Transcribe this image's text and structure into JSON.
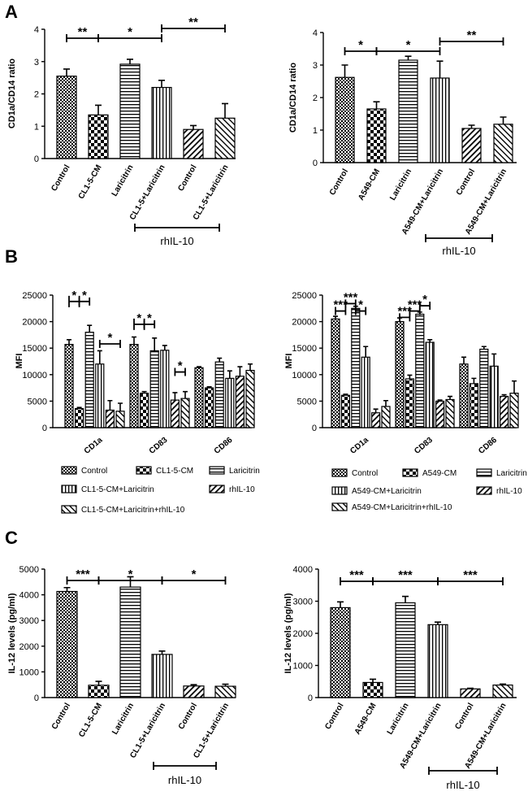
{
  "figure": {
    "panel_labels": [
      "A",
      "B",
      "C"
    ],
    "treatment_label": "rhIL-10",
    "legend_entries_left": [
      "Control",
      "CL1-5-CM",
      "Laricitrin",
      "CL1-5-CM+Laricitrin",
      "rhIL-10",
      "CL1-5-CM+Laricitrin+rhIL-10"
    ],
    "legend_entries_right": [
      "Control",
      "A549-CM",
      "Laricitrin",
      "A549-CM+Laricitrin",
      "rhIL-10",
      "A549-CM+Laricitrin+rhIL-10"
    ]
  },
  "colors": {
    "ink": "#000000",
    "background": "#ffffff"
  },
  "chart_data": [
    {
      "id": "A-left",
      "type": "bar",
      "panel": "A",
      "ylabel": "CD1a/CD14 ratio",
      "ylim": [
        0,
        4
      ],
      "yticks": [
        0,
        1,
        2,
        3,
        4
      ],
      "categories": [
        "Control",
        "CL1-5-CM",
        "Laricitrin",
        "CL1-5+Laricitrin",
        "Control",
        "CL1-5+Laricitrin"
      ],
      "values": [
        2.55,
        1.35,
        2.92,
        2.2,
        0.9,
        1.25
      ],
      "errors": [
        0.22,
        0.3,
        0.15,
        0.22,
        0.12,
        0.45
      ],
      "patterns": [
        "checker",
        "bigcheck",
        "hlines",
        "vlines",
        "diag",
        "diag2"
      ],
      "significance": [
        {
          "from": 0,
          "to": 1,
          "label": "**"
        },
        {
          "from": 1,
          "to": 3,
          "label": "*"
        },
        {
          "from": 3,
          "to": 5,
          "label": "**"
        }
      ],
      "treatment_group": [
        4,
        5
      ]
    },
    {
      "id": "A-right",
      "type": "bar",
      "panel": "A",
      "ylabel": "CD1a/CD14 ratio",
      "ylim": [
        0,
        4
      ],
      "yticks": [
        0,
        1,
        2,
        3,
        4
      ],
      "categories": [
        "Control",
        "A549-CM",
        "Laricitrin",
        "A549-CM+Laricitrin",
        "Control",
        "A549-CM+Laricitrin"
      ],
      "values": [
        2.62,
        1.65,
        3.15,
        2.6,
        1.05,
        1.18
      ],
      "errors": [
        0.38,
        0.22,
        0.12,
        0.52,
        0.1,
        0.22
      ],
      "patterns": [
        "checker",
        "bigcheck",
        "hlines",
        "vlines",
        "diag",
        "diag2"
      ],
      "significance": [
        {
          "from": 0,
          "to": 1,
          "label": "*"
        },
        {
          "from": 1,
          "to": 3,
          "label": "*"
        },
        {
          "from": 3,
          "to": 5,
          "label": "**"
        }
      ],
      "treatment_group": [
        4,
        5
      ]
    },
    {
      "id": "B-left",
      "type": "bar",
      "panel": "B",
      "ylabel": "MFI",
      "ylim": [
        0,
        25000
      ],
      "yticks": [
        0,
        5000,
        10000,
        15000,
        20000,
        25000
      ],
      "categories": [
        "CD1a",
        "CD83",
        "CD86"
      ],
      "series": [
        {
          "name": "Control",
          "pattern": "checker",
          "values": [
            15700,
            15700,
            11300
          ],
          "errors": [
            900,
            1400,
            200
          ]
        },
        {
          "name": "CL1-5-CM",
          "pattern": "bigcheck",
          "values": [
            3600,
            6500,
            7500
          ],
          "errors": [
            200,
            300,
            200
          ]
        },
        {
          "name": "Laricitrin",
          "pattern": "hlines",
          "values": [
            18000,
            14500,
            12400
          ],
          "errors": [
            1300,
            2400,
            700
          ]
        },
        {
          "name": "CL1-5-CM+Laricitrin",
          "pattern": "vlines",
          "values": [
            12000,
            14600,
            9300
          ],
          "errors": [
            2500,
            900,
            1400
          ]
        },
        {
          "name": "rhIL-10",
          "pattern": "diag",
          "values": [
            3300,
            5200,
            9700
          ],
          "errors": [
            1800,
            1400,
            1800
          ]
        },
        {
          "name": "CL1-5-CM+Laricitrin+rhIL-10",
          "pattern": "diag2",
          "values": [
            3100,
            5500,
            10800
          ],
          "errors": [
            1500,
            1300,
            1200
          ]
        }
      ],
      "significance": [
        {
          "group": 0,
          "from": 0,
          "to": 1,
          "label": "*",
          "level": 23800,
          "tall": true
        },
        {
          "group": 0,
          "from": 1,
          "to": 2,
          "label": "*",
          "level": 23800
        },
        {
          "group": 0,
          "from": 3,
          "to": 5,
          "label": "*",
          "level": 15800
        },
        {
          "group": 1,
          "from": 0,
          "to": 1,
          "label": "*",
          "level": 19500,
          "tall": true
        },
        {
          "group": 1,
          "from": 1,
          "to": 2,
          "label": "*",
          "level": 19500
        },
        {
          "group": 1,
          "from": 4,
          "to": 5,
          "label": "*",
          "level": 10500
        }
      ]
    },
    {
      "id": "B-right",
      "type": "bar",
      "panel": "B",
      "ylabel": "MFI",
      "ylim": [
        0,
        25000
      ],
      "yticks": [
        0,
        5000,
        10000,
        15000,
        20000,
        25000
      ],
      "categories": [
        "CD1a",
        "CD83",
        "CD86"
      ],
      "series": [
        {
          "name": "Control",
          "pattern": "checker",
          "values": [
            20500,
            20000,
            12000
          ],
          "errors": [
            500,
            700,
            1300
          ]
        },
        {
          "name": "A549-CM",
          "pattern": "bigcheck",
          "values": [
            6100,
            9200,
            8300
          ],
          "errors": [
            200,
            700,
            1000
          ]
        },
        {
          "name": "Laricitrin",
          "pattern": "hlines",
          "values": [
            22500,
            21400,
            14800
          ],
          "errors": [
            400,
            400,
            500
          ]
        },
        {
          "name": "A549-CM+Laricitrin",
          "pattern": "vlines",
          "values": [
            13300,
            16100,
            11600
          ],
          "errors": [
            2000,
            500,
            2300
          ]
        },
        {
          "name": "rhIL-10",
          "pattern": "diag",
          "values": [
            2800,
            5000,
            5900
          ],
          "errors": [
            700,
            200,
            300
          ]
        },
        {
          "name": "A549-CM+Laricitrin+rhIL-10",
          "pattern": "diag2",
          "values": [
            4000,
            5300,
            6500
          ],
          "errors": [
            1100,
            600,
            2300
          ]
        }
      ],
      "significance": [
        {
          "group": 0,
          "from": 0,
          "to": 1,
          "label": "***",
          "level": 22000
        },
        {
          "group": 0,
          "from": 1,
          "to": 2,
          "label": "***",
          "level": 23400
        },
        {
          "group": 0,
          "from": 2,
          "to": 3,
          "label": "*",
          "level": 22000
        },
        {
          "group": 1,
          "from": 0,
          "to": 1,
          "label": "***",
          "level": 20800
        },
        {
          "group": 1,
          "from": 1,
          "to": 2,
          "label": "***",
          "level": 22000
        },
        {
          "group": 1,
          "from": 2,
          "to": 3,
          "label": "*",
          "level": 23000
        }
      ]
    },
    {
      "id": "C-left",
      "type": "bar",
      "panel": "C",
      "ylabel": "IL-12 levels (pg/ml)",
      "ylim": [
        0,
        5000
      ],
      "yticks": [
        0,
        1000,
        2000,
        3000,
        4000,
        5000
      ],
      "categories": [
        "Control",
        "CL1-5-CM",
        "Laricitrin",
        "CL1-5+Laricitrin",
        "Control",
        "CL1-5+Laricitrin"
      ],
      "values": [
        4130,
        480,
        4300,
        1680,
        450,
        440
      ],
      "errors": [
        150,
        150,
        400,
        130,
        50,
        80
      ],
      "patterns": [
        "checker",
        "bigcheck",
        "hlines",
        "vlines",
        "diag",
        "diag2"
      ],
      "significance": [
        {
          "from": 0,
          "to": 1,
          "label": "***"
        },
        {
          "from": 1,
          "to": 3,
          "label": "*"
        },
        {
          "from": 3,
          "to": 5,
          "label": "*"
        }
      ],
      "treatment_group": [
        4,
        5
      ]
    },
    {
      "id": "C-right",
      "type": "bar",
      "panel": "C",
      "ylabel": "IL-12 levels (pg/ml)",
      "ylim": [
        0,
        4000
      ],
      "yticks": [
        0,
        1000,
        2000,
        3000,
        4000
      ],
      "categories": [
        "Control",
        "A549-CM",
        "Laricitrin",
        "A549-CM+Laricitrin",
        "Control",
        "A549-CM+Laricitrin"
      ],
      "values": [
        2800,
        470,
        2950,
        2270,
        270,
        390
      ],
      "errors": [
        180,
        100,
        200,
        80,
        20,
        30
      ],
      "patterns": [
        "checker",
        "bigcheck",
        "hlines",
        "vlines",
        "diag",
        "diag2"
      ],
      "significance": [
        {
          "from": 0,
          "to": 1,
          "label": "***"
        },
        {
          "from": 1,
          "to": 3,
          "label": "***"
        },
        {
          "from": 3,
          "to": 5,
          "label": "***"
        }
      ],
      "treatment_group": [
        4,
        5
      ]
    }
  ]
}
